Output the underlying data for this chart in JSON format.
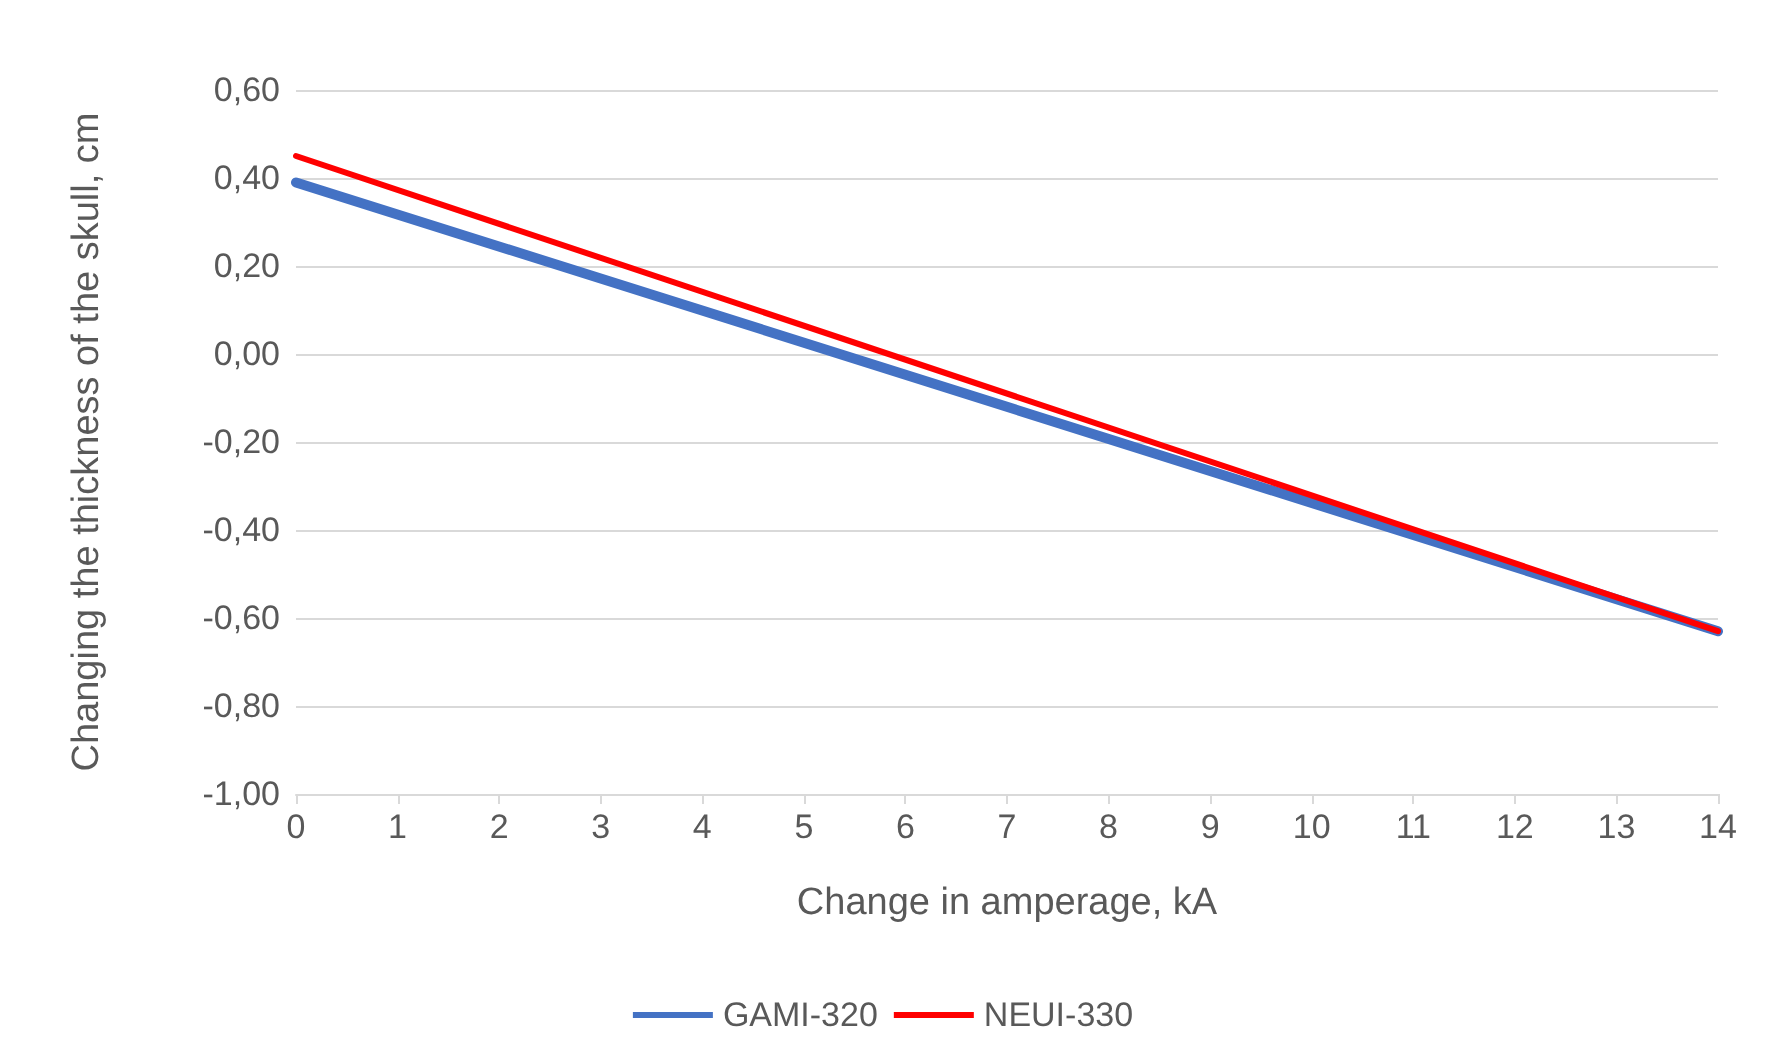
{
  "chart_data": {
    "type": "line",
    "xlabel": "Change in amperage, kA",
    "ylabel": "Changing the thickness of the skull, cm",
    "x": [
      0,
      14
    ],
    "series": [
      {
        "name": "GAMI-320",
        "color": "#4472c4",
        "values": [
          0.39,
          -0.63
        ]
      },
      {
        "name": "NEUI-330",
        "color": "#ff0000",
        "values": [
          0.45,
          -0.63
        ]
      }
    ],
    "xlim": [
      0,
      14
    ],
    "xticks": [
      0,
      1,
      2,
      3,
      4,
      5,
      6,
      7,
      8,
      9,
      10,
      11,
      12,
      13,
      14
    ],
    "ylim": [
      -1,
      0.6
    ],
    "yticks": [
      {
        "value": -1,
        "label": "-1,00"
      },
      {
        "value": -0.8,
        "label": "-0,80"
      },
      {
        "value": -0.6,
        "label": "-0,60"
      },
      {
        "value": -0.4,
        "label": "-0,40"
      },
      {
        "value": -0.2,
        "label": "-0,20"
      },
      {
        "value": 0,
        "label": "0,00"
      },
      {
        "value": 0.2,
        "label": "0,20"
      },
      {
        "value": 0.4,
        "label": "0,40"
      },
      {
        "value": 0.6,
        "label": "0,60"
      }
    ],
    "grid": "y",
    "legend": "bottom",
    "marker": "none",
    "line_style": "solid"
  }
}
